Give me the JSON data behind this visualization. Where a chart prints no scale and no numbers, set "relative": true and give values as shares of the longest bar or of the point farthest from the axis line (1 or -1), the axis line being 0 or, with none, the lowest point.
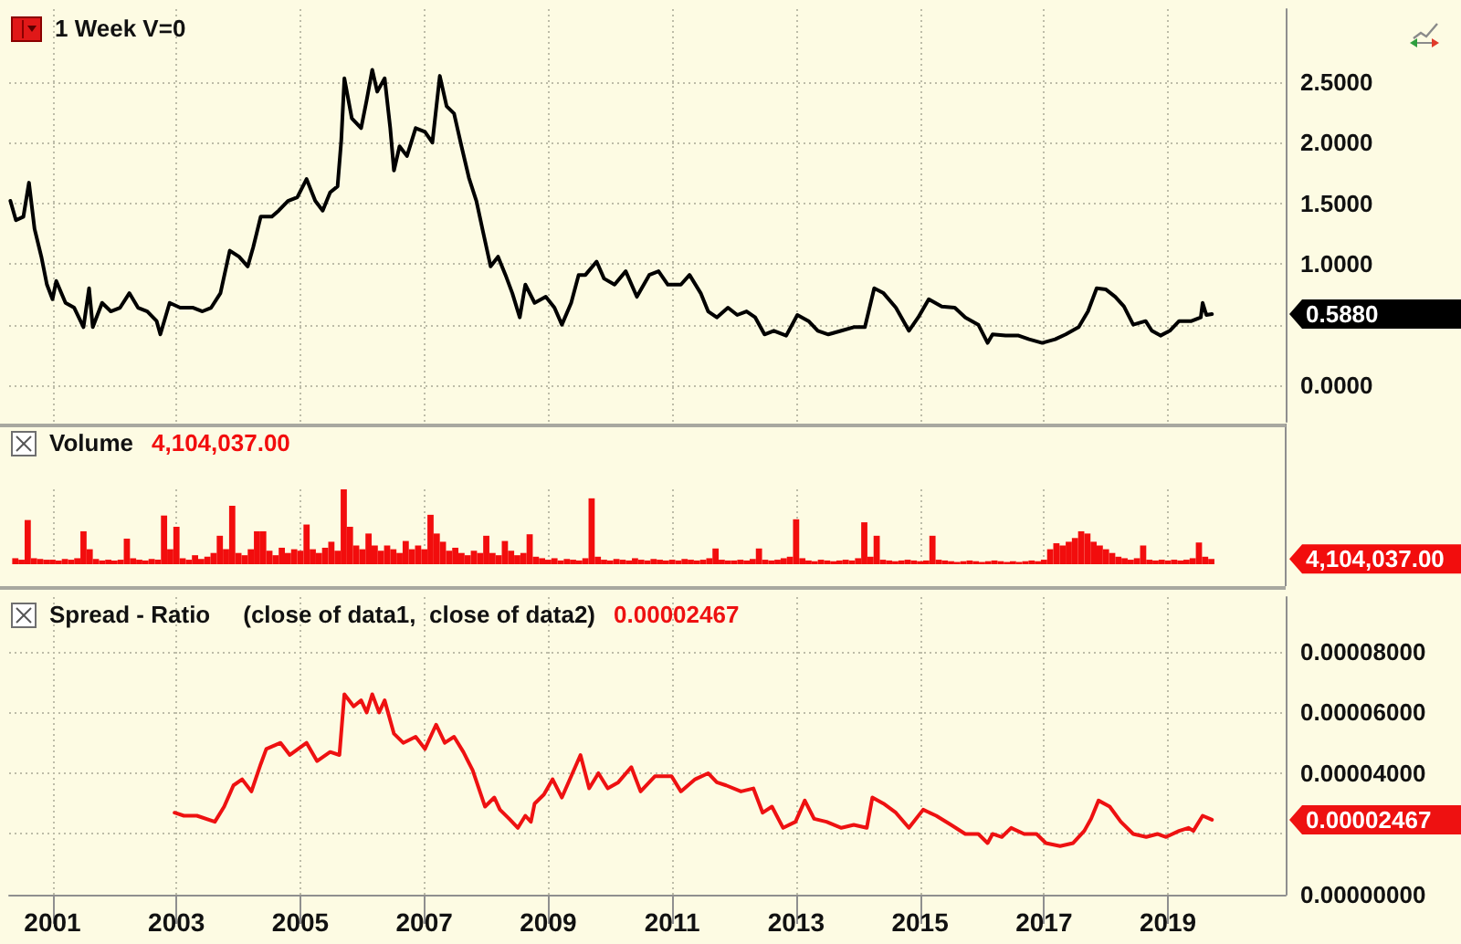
{
  "chart_data": [
    {
      "type": "line",
      "title": "1 Week V=0",
      "color": "#000000",
      "x": [
        2000.32,
        2000.41,
        2000.53,
        2000.62,
        2000.71,
        2000.82,
        2000.91,
        2001.0,
        2001.06,
        2001.21,
        2001.35,
        2001.5,
        2001.59,
        2001.65,
        2001.8,
        2001.94,
        2002.09,
        2002.24,
        2002.38,
        2002.53,
        2002.68,
        2002.74,
        2002.89,
        2003.06,
        2003.27,
        2003.42,
        2003.56,
        2003.71,
        2003.86,
        2004.01,
        2004.15,
        2004.24,
        2004.36,
        2004.54,
        2004.65,
        2004.8,
        2004.95,
        2005.1,
        2005.24,
        2005.36,
        2005.48,
        2005.6,
        2005.66,
        2005.71,
        2005.83,
        2005.98,
        2006.07,
        2006.16,
        2006.24,
        2006.36,
        2006.45,
        2006.51,
        2006.6,
        2006.72,
        2006.86,
        2007.01,
        2007.13,
        2007.25,
        2007.36,
        2007.48,
        2007.6,
        2007.72,
        2007.84,
        2007.95,
        2008.07,
        2008.19,
        2008.31,
        2008.42,
        2008.54,
        2008.63,
        2008.78,
        2008.96,
        2009.1,
        2009.22,
        2009.37,
        2009.49,
        2009.6,
        2009.78,
        2009.9,
        2010.07,
        2010.25,
        2010.43,
        2010.63,
        2010.78,
        2010.93,
        2011.14,
        2011.28,
        2011.46,
        2011.58,
        2011.72,
        2011.9,
        2012.05,
        2012.2,
        2012.34,
        2012.49,
        2012.64,
        2012.84,
        2013.02,
        2013.2,
        2013.35,
        2013.52,
        2013.73,
        2013.93,
        2014.11,
        2014.26,
        2014.41,
        2014.61,
        2014.82,
        2014.97,
        2015.14,
        2015.35,
        2015.56,
        2015.73,
        2015.94,
        2016.09,
        2016.17,
        2016.38,
        2016.59,
        2016.76,
        2016.97,
        2017.18,
        2017.35,
        2017.56,
        2017.71,
        2017.85,
        2018.0,
        2018.15,
        2018.29,
        2018.44,
        2018.64,
        2018.74,
        2018.88,
        2019.03,
        2019.18,
        2019.38,
        2019.53,
        2019.56,
        2019.62,
        2019.71
      ],
      "values": [
        1.52,
        1.36,
        1.39,
        1.67,
        1.29,
        1.06,
        0.83,
        0.71,
        0.86,
        0.68,
        0.64,
        0.48,
        0.8,
        0.48,
        0.68,
        0.61,
        0.64,
        0.76,
        0.64,
        0.61,
        0.53,
        0.42,
        0.68,
        0.64,
        0.64,
        0.61,
        0.64,
        0.76,
        1.11,
        1.06,
        0.98,
        1.14,
        1.39,
        1.39,
        1.44,
        1.52,
        1.55,
        1.7,
        1.52,
        1.44,
        1.59,
        1.64,
        2.02,
        2.53,
        2.2,
        2.12,
        2.35,
        2.6,
        2.42,
        2.53,
        2.12,
        1.77,
        1.97,
        1.89,
        2.12,
        2.09,
        2.0,
        2.55,
        2.3,
        2.24,
        1.97,
        1.71,
        1.52,
        1.26,
        0.98,
        1.06,
        0.91,
        0.76,
        0.56,
        0.83,
        0.68,
        0.73,
        0.64,
        0.5,
        0.68,
        0.91,
        0.91,
        1.02,
        0.88,
        0.83,
        0.94,
        0.73,
        0.91,
        0.94,
        0.83,
        0.83,
        0.91,
        0.76,
        0.61,
        0.56,
        0.64,
        0.58,
        0.61,
        0.56,
        0.42,
        0.45,
        0.41,
        0.58,
        0.53,
        0.45,
        0.42,
        0.45,
        0.48,
        0.48,
        0.8,
        0.76,
        0.64,
        0.45,
        0.56,
        0.71,
        0.65,
        0.64,
        0.56,
        0.5,
        0.35,
        0.42,
        0.41,
        0.41,
        0.38,
        0.35,
        0.38,
        0.42,
        0.48,
        0.61,
        0.8,
        0.79,
        0.73,
        0.65,
        0.5,
        0.53,
        0.45,
        0.41,
        0.45,
        0.53,
        0.53,
        0.56,
        0.68,
        0.58,
        0.588
      ],
      "xlim": [
        2000.3,
        2020.9
      ],
      "xticks": [
        2001,
        2003,
        2005,
        2007,
        2009,
        2011,
        2013,
        2015,
        2017,
        2019
      ],
      "ylim": [
        -0.3,
        3.1
      ],
      "yticks": [
        {
          "value": 0,
          "label": "0.0000"
        },
        {
          "value": 0.5,
          "label": null
        },
        {
          "value": 1,
          "label": "1.0000"
        },
        {
          "value": 1.5,
          "label": "1.5000"
        },
        {
          "value": 2,
          "label": "2.0000"
        },
        {
          "value": 2.5,
          "label": "2.5000"
        }
      ],
      "grid": true,
      "tick_labels": "y",
      "annotations": [
        "0.5880"
      ]
    },
    {
      "type": "bar",
      "title": "Volume",
      "color": "#f20d0d",
      "relative": true,
      "x": [
        2000.4,
        2000.5,
        2000.6,
        2000.7,
        2000.8,
        2000.9,
        2001.0,
        2001.1,
        2001.2,
        2001.3,
        2001.4,
        2001.5,
        2001.6,
        2001.7,
        2001.8,
        2001.9,
        2002.0,
        2002.1,
        2002.2,
        2002.3,
        2002.4,
        2002.5,
        2002.6,
        2002.7,
        2002.8,
        2002.9,
        2003.0,
        2003.1,
        2003.2,
        2003.3,
        2003.4,
        2003.5,
        2003.6,
        2003.7,
        2003.8,
        2003.9,
        2004.0,
        2004.1,
        2004.2,
        2004.3,
        2004.4,
        2004.5,
        2004.6,
        2004.7,
        2004.8,
        2004.9,
        2005.0,
        2005.1,
        2005.2,
        2005.3,
        2005.4,
        2005.5,
        2005.6,
        2005.7,
        2005.8,
        2005.9,
        2006.0,
        2006.1,
        2006.2,
        2006.3,
        2006.4,
        2006.5,
        2006.6,
        2006.7,
        2006.8,
        2006.9,
        2007.0,
        2007.1,
        2007.2,
        2007.3,
        2007.4,
        2007.5,
        2007.6,
        2007.7,
        2007.8,
        2007.9,
        2008.0,
        2008.1,
        2008.2,
        2008.3,
        2008.4,
        2008.5,
        2008.6,
        2008.7,
        2008.8,
        2008.9,
        2009.0,
        2009.1,
        2009.2,
        2009.3,
        2009.4,
        2009.5,
        2009.6,
        2009.7,
        2009.8,
        2009.9,
        2010.0,
        2010.1,
        2010.2,
        2010.3,
        2010.4,
        2010.5,
        2010.6,
        2010.7,
        2010.8,
        2010.9,
        2011.0,
        2011.1,
        2011.2,
        2011.3,
        2011.4,
        2011.5,
        2011.6,
        2011.7,
        2011.8,
        2011.9,
        2012.0,
        2012.1,
        2012.2,
        2012.3,
        2012.4,
        2012.5,
        2012.6,
        2012.7,
        2012.8,
        2012.9,
        2013.0,
        2013.1,
        2013.2,
        2013.3,
        2013.4,
        2013.5,
        2013.6,
        2013.7,
        2013.8,
        2013.9,
        2014.0,
        2014.1,
        2014.2,
        2014.3,
        2014.4,
        2014.5,
        2014.6,
        2014.7,
        2014.8,
        2014.9,
        2015.0,
        2015.1,
        2015.2,
        2015.3,
        2015.4,
        2015.5,
        2015.6,
        2015.7,
        2015.8,
        2015.9,
        2016.0,
        2016.1,
        2016.2,
        2016.3,
        2016.4,
        2016.5,
        2016.6,
        2016.7,
        2016.8,
        2016.9,
        2017.0,
        2017.1,
        2017.2,
        2017.3,
        2017.4,
        2017.5,
        2017.6,
        2017.7,
        2017.8,
        2017.9,
        2018.0,
        2018.1,
        2018.2,
        2018.3,
        2018.4,
        2018.5,
        2018.6,
        2018.7,
        2018.8,
        2018.9,
        2019.0,
        2019.1,
        2019.2,
        2019.3,
        2019.4,
        2019.5,
        2019.6,
        2019.7
      ],
      "values": [
        0.08,
        0.06,
        0.59,
        0.08,
        0.07,
        0.06,
        0.06,
        0.05,
        0.07,
        0.06,
        0.08,
        0.44,
        0.2,
        0.07,
        0.05,
        0.06,
        0.05,
        0.06,
        0.34,
        0.08,
        0.06,
        0.05,
        0.07,
        0.06,
        0.65,
        0.2,
        0.5,
        0.08,
        0.06,
        0.12,
        0.07,
        0.1,
        0.15,
        0.38,
        0.2,
        0.78,
        0.15,
        0.12,
        0.2,
        0.44,
        0.44,
        0.18,
        0.12,
        0.22,
        0.15,
        0.2,
        0.18,
        0.53,
        0.2,
        0.15,
        0.22,
        0.3,
        0.18,
        1,
        0.5,
        0.25,
        0.2,
        0.41,
        0.25,
        0.18,
        0.25,
        0.2,
        0.15,
        0.31,
        0.2,
        0.25,
        0.2,
        0.66,
        0.41,
        0.3,
        0.18,
        0.22,
        0.15,
        0.12,
        0.18,
        0.15,
        0.38,
        0.15,
        0.12,
        0.31,
        0.18,
        0.12,
        0.15,
        0.4,
        0.1,
        0.08,
        0.06,
        0.08,
        0.05,
        0.07,
        0.06,
        0.05,
        0.08,
        0.88,
        0.1,
        0.06,
        0.05,
        0.07,
        0.06,
        0.05,
        0.08,
        0.06,
        0.05,
        0.07,
        0.06,
        0.05,
        0.06,
        0.05,
        0.07,
        0.06,
        0.05,
        0.06,
        0.08,
        0.21,
        0.06,
        0.05,
        0.05,
        0.06,
        0.05,
        0.07,
        0.21,
        0.06,
        0.05,
        0.06,
        0.08,
        0.1,
        0.6,
        0.08,
        0.05,
        0.04,
        0.06,
        0.05,
        0.04,
        0.05,
        0.06,
        0.05,
        0.08,
        0.56,
        0.1,
        0.38,
        0.06,
        0.05,
        0.04,
        0.05,
        0.06,
        0.05,
        0.04,
        0.05,
        0.38,
        0.06,
        0.05,
        0.04,
        0.03,
        0.04,
        0.05,
        0.04,
        0.03,
        0.04,
        0.05,
        0.04,
        0.03,
        0.04,
        0.03,
        0.04,
        0.05,
        0.04,
        0.06,
        0.2,
        0.28,
        0.25,
        0.3,
        0.35,
        0.44,
        0.41,
        0.3,
        0.25,
        0.2,
        0.15,
        0.1,
        0.08,
        0.06,
        0.08,
        0.25,
        0.06,
        0.05,
        0.06,
        0.05,
        0.06,
        0.05,
        0.06,
        0.08,
        0.29,
        0.1,
        0.07
      ],
      "xlim": [
        2000.3,
        2020.9
      ],
      "xticks": [
        2001,
        2003,
        2005,
        2007,
        2009,
        2011,
        2013,
        2015,
        2017,
        2019
      ],
      "grid": "x",
      "tick_labels": false,
      "annotations": [
        "4,104,037.00",
        "4,104,037.00"
      ]
    },
    {
      "type": "line",
      "title": "Spread - Ratio",
      "subtitle": "(close of data1,  close of data2)",
      "color": "#ee1111",
      "x": [
        2002.97,
        2003.12,
        2003.33,
        2003.62,
        2003.77,
        2003.92,
        2004.06,
        2004.21,
        2004.36,
        2004.45,
        2004.68,
        2004.83,
        2005.1,
        2005.27,
        2005.48,
        2005.63,
        2005.71,
        2005.86,
        2005.98,
        2006.07,
        2006.16,
        2006.27,
        2006.36,
        2006.51,
        2006.66,
        2006.86,
        2007.01,
        2007.19,
        2007.33,
        2007.48,
        2007.63,
        2007.78,
        2007.98,
        2008.13,
        2008.22,
        2008.37,
        2008.51,
        2008.63,
        2008.72,
        2008.78,
        2008.93,
        2009.07,
        2009.22,
        2009.37,
        2009.52,
        2009.66,
        2009.81,
        2009.96,
        2010.13,
        2010.34,
        2010.49,
        2010.72,
        2010.99,
        2011.14,
        2011.37,
        2011.58,
        2011.72,
        2011.87,
        2012.11,
        2012.31,
        2012.46,
        2012.61,
        2012.79,
        2012.99,
        2013.14,
        2013.29,
        2013.49,
        2013.73,
        2013.93,
        2014.14,
        2014.23,
        2014.41,
        2014.61,
        2014.82,
        2015.05,
        2015.26,
        2015.5,
        2015.73,
        2015.94,
        2016.09,
        2016.17,
        2016.32,
        2016.47,
        2016.68,
        2016.88,
        2017.03,
        2017.26,
        2017.47,
        2017.65,
        2017.76,
        2017.88,
        2018.06,
        2018.24,
        2018.44,
        2018.65,
        2018.83,
        2018.97,
        2019.18,
        2019.33,
        2019.41,
        2019.56,
        2019.71
      ],
      "values": [
        2.7e-05,
        2.6e-05,
        2.6e-05,
        2.4e-05,
        2.9e-05,
        3.6e-05,
        3.8e-05,
        3.4e-05,
        4.3e-05,
        4.8e-05,
        5e-05,
        4.6e-05,
        5e-05,
        4.4e-05,
        4.7e-05,
        4.6e-05,
        6.6e-05,
        6.2e-05,
        6.4e-05,
        6e-05,
        6.6e-05,
        6e-05,
        6.4e-05,
        5.3e-05,
        5e-05,
        5.2e-05,
        4.8e-05,
        5.6e-05,
        5e-05,
        5.2e-05,
        4.7e-05,
        4.1e-05,
        2.9e-05,
        3.2e-05,
        2.8e-05,
        2.5e-05,
        2.2e-05,
        2.6e-05,
        2.4e-05,
        3e-05,
        3.3e-05,
        3.8e-05,
        3.2e-05,
        3.9e-05,
        4.6e-05,
        3.5e-05,
        4e-05,
        3.5e-05,
        3.7e-05,
        4.2e-05,
        3.4e-05,
        3.9e-05,
        3.9e-05,
        3.4e-05,
        3.8e-05,
        4e-05,
        3.7e-05,
        3.6e-05,
        3.4e-05,
        3.5e-05,
        2.7e-05,
        2.9e-05,
        2.2e-05,
        2.4e-05,
        3.1e-05,
        2.5e-05,
        2.4e-05,
        2.2e-05,
        2.3e-05,
        2.2e-05,
        3.2e-05,
        3e-05,
        2.7e-05,
        2.2e-05,
        2.8e-05,
        2.6e-05,
        2.3e-05,
        2e-05,
        2e-05,
        1.7e-05,
        2e-05,
        1.9e-05,
        2.2e-05,
        2e-05,
        2e-05,
        1.7e-05,
        1.6e-05,
        1.7e-05,
        2.1e-05,
        2.5e-05,
        3.1e-05,
        2.9e-05,
        2.4e-05,
        2e-05,
        1.9e-05,
        2e-05,
        1.9e-05,
        2.1e-05,
        2.2e-05,
        2.1e-05,
        2.6e-05,
        2.467e-05
      ],
      "xlim": [
        2000.3,
        2020.9
      ],
      "xticks": [
        2001,
        2003,
        2005,
        2007,
        2009,
        2011,
        2013,
        2015,
        2017,
        2019
      ],
      "ylim": [
        0,
        9.8e-05
      ],
      "yticks": [
        {
          "value": 0,
          "label": "0.00000000"
        },
        {
          "value": 2e-05,
          "label": null
        },
        {
          "value": 4e-05,
          "label": "0.00004000"
        },
        {
          "value": 6e-05,
          "label": "0.00006000"
        },
        {
          "value": 8e-05,
          "label": "0.00008000"
        }
      ],
      "grid": true,
      "annotations": [
        "0.00002467",
        "0.00002467"
      ]
    }
  ]
}
